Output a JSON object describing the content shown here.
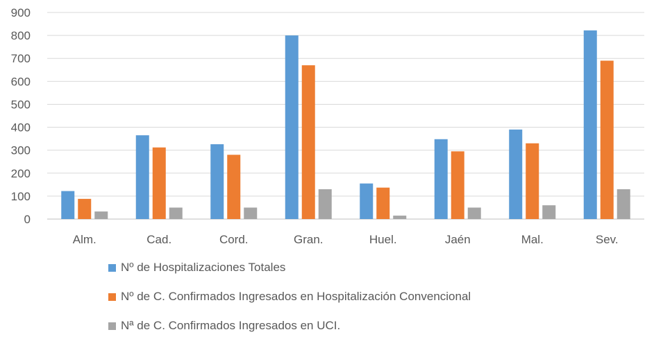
{
  "chart_data": {
    "type": "bar",
    "categories": [
      "Alm.",
      "Cad.",
      "Cord.",
      "Gran.",
      "Huel.",
      "Jaén",
      "Mal.",
      "Sev."
    ],
    "series": [
      {
        "name": "Nº de Hospitalizaciones Totales",
        "color": "#5b9bd5",
        "values": [
          122,
          365,
          326,
          800,
          155,
          348,
          390,
          822
        ]
      },
      {
        "name": "Nº de C. Confirmados Ingresados en Hospitalización Convencional",
        "color": "#ed7d31",
        "values": [
          88,
          312,
          280,
          670,
          137,
          295,
          330,
          690
        ]
      },
      {
        "name": "Nª de C. Confirmados Ingresados en UCI.",
        "color": "#a5a5a5",
        "values": [
          33,
          50,
          50,
          130,
          15,
          50,
          60,
          130
        ]
      }
    ],
    "ylim": [
      0,
      900
    ],
    "yticks": [
      "0",
      "100",
      "200",
      "300",
      "400",
      "500",
      "600",
      "700",
      "800",
      "900"
    ],
    "grid": true,
    "legend_position": "bottom-left"
  }
}
